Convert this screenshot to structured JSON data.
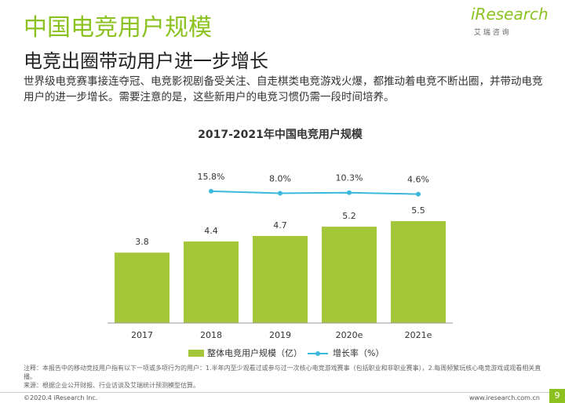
{
  "header": {
    "title": "中国电竞用户规模",
    "subtitle": "电竞出圈带动用户进一步增长",
    "logo": "iResearch",
    "logo_sub": "艾 瑞 咨 询"
  },
  "body": "世界级电竞赛事接连夺冠、电竞影视剧备受关注、自走棋类电竞游戏火爆，都推动着电竞不断出圈，并带动电竞用户的进一步增长。需要注意的是，这些新用户的电竞习惯仍需一段时间培养。",
  "chart_data": {
    "type": "bar",
    "title": "2017-2021年中国电竞用户规模",
    "categories": [
      "2017",
      "2018",
      "2019",
      "2020e",
      "2021e"
    ],
    "ylim": [
      0,
      8
    ],
    "y2lim": [
      -500,
      80
    ],
    "series": [
      {
        "name": "整体电竞用户规模（亿）",
        "color": "#a4c639",
        "values": [
          3.8,
          4.4,
          4.7,
          5.2,
          5.5
        ]
      },
      {
        "name": "增长率（%）",
        "color": "#3bb8dc",
        "axis": "y2",
        "type": "line",
        "values": [
          null,
          15.8,
          8.0,
          10.3,
          4.6
        ],
        "value_labels": [
          null,
          "15.8%",
          "8.0%",
          "10.3%",
          "4.6%"
        ]
      }
    ]
  },
  "notes": [
    "注释：本报告中的移动竞技用户指有以下一项或多项行为的用户：1.半年内至少观看过或参与过一次核心电竞游戏赛事（包括职业和非职业赛事），2.每周频繁玩核心电竞游戏或观看相关直播。",
    "来源：根据企业公开财报、行业访谈及艾瑞统计预测模型估算。"
  ],
  "footer": {
    "left": "©2020.4 iResearch Inc.",
    "right": "www.iresearch.com.cn",
    "page": "9"
  }
}
